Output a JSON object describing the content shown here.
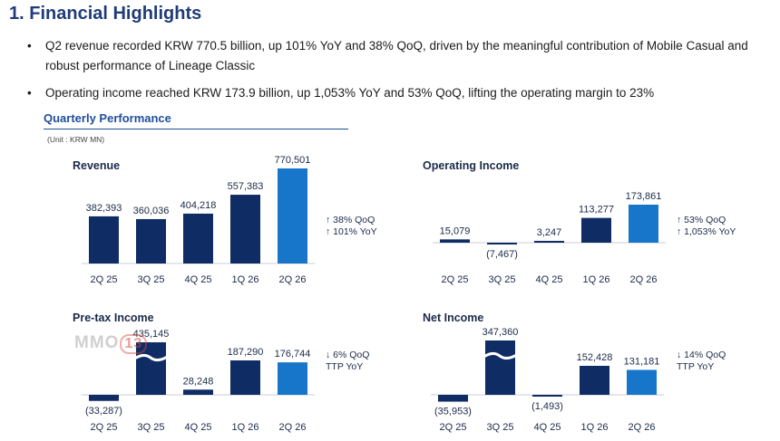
{
  "title": "1. Financial Highlights",
  "bullets": [
    "Q2 revenue recorded KRW 770.5 billion, up 101% YoY and 38% QoQ, driven by the meaningful contribution of Mobile Casual and robust performance of Lineage Classic",
    "Operating income reached KRW 173.9 billion, up 1,053% YoY and 53% QoQ, lifting the operating margin to 23%"
  ],
  "section_title": "Quarterly Performance",
  "unit": "(Unit : KRW MN)",
  "watermark": {
    "text": "MMO",
    "badge": "13"
  },
  "colors": {
    "dark_bar": "#0f2d64",
    "highlight_bar": "#1776c9",
    "text": "#1b2a49"
  },
  "chart_data": [
    {
      "type": "bar",
      "title": "Revenue",
      "categories": [
        "2Q 25",
        "3Q 25",
        "4Q 25",
        "1Q 26",
        "2Q 26"
      ],
      "values": [
        382393,
        360036,
        404218,
        557383,
        770501
      ],
      "labels": [
        "382,393",
        "360,036",
        "404,218",
        "557,383",
        "770,501"
      ],
      "growth": [
        "↑ 38% QoQ",
        "↑ 101% YoY"
      ],
      "ylim": [
        0,
        770501
      ]
    },
    {
      "type": "bar",
      "title": "Operating Income",
      "categories": [
        "2Q 25",
        "3Q 25",
        "4Q 25",
        "1Q 26",
        "2Q 26"
      ],
      "values": [
        15079,
        -7467,
        3247,
        113277,
        173861
      ],
      "labels": [
        "15,079",
        "(7,467)",
        "3,247",
        "113,277",
        "173,861"
      ],
      "growth": [
        "↑ 53% QoQ",
        "↑ 1,053% YoY"
      ],
      "ylim": [
        -7467,
        173861
      ]
    },
    {
      "type": "bar",
      "title": "Pre-tax Income",
      "categories": [
        "2Q 25",
        "3Q 25",
        "4Q 25",
        "1Q 26",
        "2Q 26"
      ],
      "values": [
        -33287,
        435145,
        28248,
        187290,
        176744
      ],
      "labels": [
        "(33,287)",
        "435,145",
        "28,248",
        "187,290",
        "176,744"
      ],
      "growth": [
        "↓ 6% QoQ",
        "TTP YoY"
      ],
      "axis_break": "3Q 25",
      "ylim": [
        -33287,
        187290
      ]
    },
    {
      "type": "bar",
      "title": "Net Income",
      "categories": [
        "2Q 25",
        "3Q 25",
        "4Q 25",
        "1Q 26",
        "2Q 26"
      ],
      "values": [
        -35953,
        347360,
        -1493,
        152428,
        131181
      ],
      "labels": [
        "(35,953)",
        "347,360",
        "(1,493)",
        "152,428",
        "131,181"
      ],
      "growth": [
        "↓ 14% QoQ",
        "TTP YoY"
      ],
      "axis_break": "3Q 25",
      "ylim": [
        -35953,
        152428
      ]
    }
  ]
}
